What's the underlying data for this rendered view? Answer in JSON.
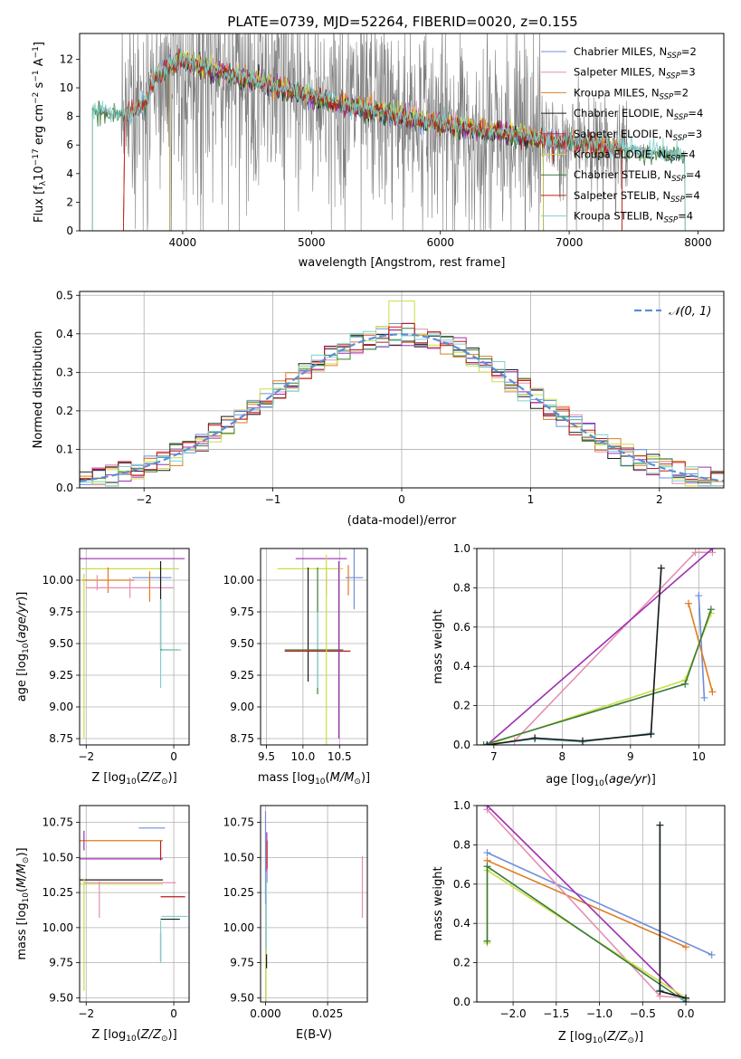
{
  "figure": {
    "title": "PLATE=0739, MJD=52264, FIBERID=0020, z=0.155"
  },
  "colors": {
    "data_gray": "#808080",
    "axis": "#000000",
    "grid": "#b0b0b0",
    "chabrier_miles": "#6f8fdb",
    "salpeter_miles": "#e58fb4",
    "kroupa_miles": "#e07b20",
    "chabrier_elodie": "#1a1a1a",
    "salpeter_elodie": "#9f2fb0",
    "kroupa_elodie": "#ccdd44",
    "chabrier_stelib": "#3a7a3a",
    "salpeter_stelib": "#c01818",
    "kroupa_stelib": "#7fd0cc",
    "gaussian": "#5b8fd6"
  },
  "legend": {
    "spectrum": [
      {
        "key": "chabrier_miles",
        "pre": "Chabrier MILES, N",
        "sub": "SSP",
        "post": "=2"
      },
      {
        "key": "salpeter_miles",
        "pre": "Salpeter MILES, N",
        "sub": "SSP",
        "post": "=3"
      },
      {
        "key": "kroupa_miles",
        "pre": "Kroupa MILES, N",
        "sub": "SSP",
        "post": "=2"
      },
      {
        "key": "chabrier_elodie",
        "pre": "Chabrier ELODIE, N",
        "sub": "SSP",
        "post": "=4"
      },
      {
        "key": "salpeter_elodie",
        "pre": "Salpeter ELODIE, N",
        "sub": "SSP",
        "post": "=3"
      },
      {
        "key": "kroupa_elodie",
        "pre": "Kroupa ELODIE, N",
        "sub": "SSP",
        "post": "=4"
      },
      {
        "key": "chabrier_stelib",
        "pre": "Chabrier STELIB, N",
        "sub": "SSP",
        "post": "=4"
      },
      {
        "key": "salpeter_stelib",
        "pre": "Salpeter STELIB, N",
        "sub": "SSP",
        "post": "=4"
      },
      {
        "key": "kroupa_stelib",
        "pre": "Kroupa STELIB, N",
        "sub": "SSP",
        "post": "=4"
      }
    ],
    "residual": "𝒩(0, 1)"
  },
  "chart_data": [
    {
      "id": "spectrum",
      "type": "line",
      "xlabel": "wavelength [Angstrom, rest frame]",
      "ylabel": "Flux [f_λ 10^-17 erg cm^-2 s^-1 A^-1]",
      "ylabel_parts": {
        "pre": "Flux [f",
        "sub1": "λ",
        "mid": "10",
        "sup1": "−17",
        "mid2": " erg cm",
        "sup2": "−2",
        "mid3": " s",
        "sup3": "−1",
        "mid4": " A",
        "sup4": "−1",
        "post": "]"
      },
      "xlim": [
        3200,
        8200
      ],
      "ylim": [
        0,
        13.8
      ],
      "xticks": [
        4000,
        5000,
        6000,
        7000,
        8000
      ],
      "xtick_labels": [
        "4000",
        "5000",
        "6000",
        "7000",
        "8000"
      ],
      "yticks": [
        0,
        2,
        4,
        6,
        8,
        10,
        12
      ],
      "ytick_labels": [
        "0",
        "2",
        "4",
        "6",
        "8",
        "10",
        "12"
      ],
      "grid": false,
      "legend_position": "right",
      "data_continuum": {
        "x": [
          3300,
          3400,
          3500,
          3600,
          3700,
          3800,
          3900,
          4000,
          4100,
          4200,
          4300,
          4400,
          4500,
          4600,
          4700,
          4800,
          4900,
          5000,
          5200,
          5400,
          5600,
          5800,
          6000,
          6200,
          6400,
          6600,
          6800,
          7000,
          7200,
          7400,
          7600,
          7800,
          7900
        ],
        "y": [
          8.5,
          8.3,
          8.2,
          8.0,
          8.6,
          11.2,
          11.8,
          12.0,
          11.6,
          11.4,
          11.2,
          10.9,
          10.6,
          10.5,
          10.3,
          9.9,
          9.7,
          9.4,
          9.0,
          8.6,
          8.2,
          7.9,
          7.5,
          7.2,
          6.9,
          6.6,
          6.4,
          6.2,
          6.0,
          5.8,
          5.5,
          5.3,
          5.2
        ]
      },
      "model_continuum": {
        "x": [
          3300,
          3500,
          3600,
          3700,
          3800,
          3900,
          4000,
          4200,
          4400,
          4600,
          4800,
          5000,
          5200,
          5400,
          5600,
          5800,
          6000,
          6200,
          6400,
          6600,
          6800,
          7000,
          7200,
          7400,
          7600,
          7800,
          7900
        ],
        "y": [
          8.4,
          8.1,
          8.3,
          8.8,
          11.0,
          11.6,
          11.9,
          11.3,
          10.8,
          10.4,
          9.9,
          9.4,
          8.9,
          8.5,
          8.2,
          7.8,
          7.5,
          7.2,
          6.9,
          6.6,
          6.4,
          6.2,
          6.0,
          5.8,
          5.5,
          5.4,
          5.2
        ]
      }
    },
    {
      "id": "residuals",
      "type": "line",
      "xlabel": "(data-model)/error",
      "ylabel": "Normed distribution",
      "xlim": [
        -2.5,
        2.5
      ],
      "ylim": [
        0,
        0.51
      ],
      "xticks": [
        -2,
        -1,
        0,
        1,
        2
      ],
      "xtick_labels": [
        "−2",
        "−1",
        "0",
        "1",
        "2"
      ],
      "yticks": [
        0,
        0.1,
        0.2,
        0.3,
        0.4,
        0.5
      ],
      "ytick_labels": [
        "0.0",
        "0.1",
        "0.2",
        "0.3",
        "0.4",
        "0.5"
      ],
      "grid": true,
      "legend_position": "top-right",
      "histogram_bin_width": 0.1,
      "series_keys": [
        "chabrier_miles",
        "salpeter_miles",
        "kroupa_miles",
        "chabrier_elodie",
        "salpeter_elodie",
        "kroupa_elodie",
        "chabrier_stelib",
        "salpeter_stelib",
        "kroupa_stelib"
      ],
      "gaussian": {
        "name": "𝒩(0, 1)",
        "mean": 0,
        "sigma": 1
      }
    },
    {
      "id": "age_vs_Z",
      "type": "scatter",
      "xlabel": "Z [log10(Z/Z⊙)]",
      "ylabel": "age  [log10(age/yr)]",
      "xlim": [
        -2.15,
        0.35
      ],
      "ylim": [
        8.7,
        10.25
      ],
      "xticks": [
        -2,
        0
      ],
      "xtick_labels": [
        "−2",
        "0"
      ],
      "yticks": [
        8.75,
        9.0,
        9.25,
        9.5,
        9.75,
        10.0
      ],
      "ytick_labels": [
        "8.75",
        "9.00",
        "9.25",
        "9.50",
        "9.75",
        "10.00"
      ],
      "grid": true,
      "errorbars": [
        {
          "key": "salpeter_elodie",
          "x": -1.0,
          "xerr": 1.25,
          "y": 10.17,
          "yerr": 0
        },
        {
          "key": "kroupa_elodie",
          "x": -1.0,
          "xerr": 1.12,
          "y": 10.09,
          "yerr": 0
        },
        {
          "key": "chabrier_miles",
          "x": -0.5,
          "xerr": 0.45,
          "y": 10.02,
          "yerr": 0
        },
        {
          "key": "kroupa_miles",
          "x": -1.5,
          "xerr": 0.6,
          "y": 10.0,
          "yerr": 0.1
        },
        {
          "key": "salpeter_miles",
          "x": -1.0,
          "xerr": 1.0,
          "y": 9.94,
          "yerr": 0.08
        },
        {
          "key": "kroupa_miles",
          "x": -0.55,
          "xerr": 0,
          "y": 9.95,
          "yerr": 0.12
        },
        {
          "key": "chabrier_elodie",
          "x": -0.3,
          "xerr": 0,
          "y": 9.8,
          "yerr": 0.35
        },
        {
          "key": "kroupa_stelib",
          "x": -0.3,
          "xerr": 0,
          "y": 9.5,
          "yerr": 0.35
        },
        {
          "key": "chabrier_stelib",
          "x": -0.1,
          "xerr": 0.2,
          "y": 9.45,
          "yerr": 0
        },
        {
          "key": "kroupa_stelib",
          "x": -0.05,
          "xerr": 0.22,
          "y": 9.45,
          "yerr": 0
        },
        {
          "key": "kroupa_elodie",
          "x": -2.05,
          "xerr": 0,
          "y": 9.4,
          "yerr": 0.65
        },
        {
          "key": "salpeter_miles",
          "x": -1.75,
          "xerr": 0,
          "y": 9.98,
          "yerr": 0.06
        }
      ]
    },
    {
      "id": "age_vs_mass",
      "type": "scatter",
      "xlabel": "mass [log10(M/M⊙)]",
      "ylabel": "",
      "xlim": [
        9.42,
        10.88
      ],
      "ylim": [
        8.7,
        10.25
      ],
      "xticks": [
        9.5,
        10.0,
        10.5
      ],
      "xtick_labels": [
        "9.5",
        "10.0",
        "10.5"
      ],
      "yticks": [
        8.75,
        9.0,
        9.25,
        9.5,
        9.75,
        10.0
      ],
      "ytick_labels": [
        "8.75",
        "9.00",
        "9.25",
        "9.50",
        "9.75",
        "10.00"
      ],
      "grid": true,
      "errorbars": [
        {
          "key": "salpeter_elodie",
          "x": 10.25,
          "xerr": 0.35,
          "y": 10.17,
          "yerr": 0
        },
        {
          "key": "kroupa_elodie",
          "x": 10.1,
          "xerr": 0.45,
          "y": 10.09,
          "yerr": 0
        },
        {
          "key": "chabrier_miles",
          "x": 10.7,
          "xerr": 0.12,
          "y": 10.02,
          "yerr": 0.25
        },
        {
          "key": "kroupa_miles",
          "x": 10.62,
          "xerr": 0,
          "y": 10.0,
          "yerr": 0.12
        },
        {
          "key": "salpeter_miles",
          "x": 10.32,
          "xerr": 0,
          "y": 9.98,
          "yerr": 0.1
        },
        {
          "key": "chabrier_elodie",
          "x": 10.07,
          "xerr": 0,
          "y": 9.65,
          "yerr": 0.45
        },
        {
          "key": "chabrier_stelib",
          "x": 10.2,
          "xerr": 0,
          "y": 9.6,
          "yerr": 0.5
        },
        {
          "key": "kroupa_stelib",
          "x": 10.2,
          "xerr": 0,
          "y": 9.45,
          "yerr": 0.3
        },
        {
          "key": "chabrier_stelib",
          "x": 10.15,
          "xerr": 0.4,
          "y": 9.45,
          "yerr": 0
        },
        {
          "key": "salpeter_stelib",
          "x": 10.2,
          "xerr": 0.45,
          "y": 9.44,
          "yerr": 0
        },
        {
          "key": "kroupa_elodie",
          "x": 10.32,
          "xerr": 0,
          "y": 9.45,
          "yerr": 0.75
        },
        {
          "key": "salpeter_elodie",
          "x": 10.49,
          "xerr": 0,
          "y": 9.45,
          "yerr": 0.7
        }
      ]
    },
    {
      "id": "weight_vs_age",
      "type": "line",
      "xlabel": "age  [log10(age/yr)]",
      "ylabel": "mass weight",
      "xlim": [
        6.75,
        10.38
      ],
      "ylim": [
        0,
        1.0
      ],
      "xticks": [
        7,
        8,
        9,
        10
      ],
      "xtick_labels": [
        "7",
        "8",
        "9",
        "10"
      ],
      "yticks": [
        0,
        0.2,
        0.4,
        0.6,
        0.8,
        1.0
      ],
      "ytick_labels": [
        "0.0",
        "0.2",
        "0.4",
        "0.6",
        "0.8",
        "1.0"
      ],
      "grid": true,
      "series": [
        {
          "key": "chabrier_miles",
          "x": [
            10.0,
            10.08
          ],
          "y": [
            0.76,
            0.24
          ]
        },
        {
          "key": "salpeter_miles",
          "x": [
            7.3,
            9.95,
            10.2
          ],
          "y": [
            0.02,
            0.98,
            0.98
          ]
        },
        {
          "key": "kroupa_miles",
          "x": [
            9.85,
            10.2
          ],
          "y": [
            0.72,
            0.27
          ]
        },
        {
          "key": "salpeter_elodie",
          "x": [
            6.9,
            10.2
          ],
          "y": [
            0.0,
            1.0
          ]
        },
        {
          "key": "kroupa_elodie",
          "x": [
            6.9,
            9.8,
            10.18
          ],
          "y": [
            0.0,
            0.33,
            0.67
          ]
        },
        {
          "key": "chabrier_stelib",
          "x": [
            6.85,
            9.8,
            10.18
          ],
          "y": [
            0.0,
            0.31,
            0.69
          ]
        },
        {
          "key": "kroupa_stelib",
          "x": [
            6.9,
            7.6,
            8.3,
            9.3,
            9.45
          ],
          "y": [
            0.0,
            0.03,
            0.015,
            0.06,
            0.9
          ]
        },
        {
          "key": "chabrier_elodie",
          "x": [
            6.9,
            7.6,
            8.3,
            9.3,
            9.45
          ],
          "y": [
            0.0,
            0.035,
            0.02,
            0.055,
            0.9
          ]
        }
      ]
    },
    {
      "id": "mass_vs_Z",
      "type": "scatter",
      "xlabel": "Z [log10(Z/Z⊙)]",
      "ylabel": "mass [log10(M/M⊙)]",
      "xlim": [
        -2.15,
        0.35
      ],
      "ylim": [
        9.47,
        10.87
      ],
      "xticks": [
        -2,
        0
      ],
      "xtick_labels": [
        "−2",
        "0"
      ],
      "yticks": [
        9.5,
        9.75,
        10.0,
        10.25,
        10.5,
        10.75
      ],
      "ytick_labels": [
        "9.50",
        "9.75",
        "10.00",
        "10.25",
        "10.50",
        "10.75"
      ],
      "grid": true,
      "errorbars": [
        {
          "key": "chabrier_miles",
          "x": -0.5,
          "xerr": 0.3,
          "y": 10.71,
          "yerr": 0
        },
        {
          "key": "kroupa_miles",
          "x": -1.2,
          "xerr": 0.95,
          "y": 10.62,
          "yerr": 0
        },
        {
          "key": "salpeter_elodie",
          "x": -1.2,
          "xerr": 0.95,
          "y": 10.49,
          "yerr": 0
        },
        {
          "key": "chabrier_elodie",
          "x": -1.2,
          "xerr": 0.95,
          "y": 10.34,
          "yerr": 0
        },
        {
          "key": "kroupa_elodie",
          "x": -1.2,
          "xerr": 0.95,
          "y": 10.31,
          "yerr": 0
        },
        {
          "key": "salpeter_miles",
          "x": -1.0,
          "xerr": 1.05,
          "y": 10.32,
          "yerr": 0
        },
        {
          "key": "salpeter_stelib",
          "x": -0.02,
          "xerr": 0.28,
          "y": 10.22,
          "yerr": 0
        },
        {
          "key": "kroupa_stelib",
          "x": 0.02,
          "xerr": 0.3,
          "y": 10.08,
          "yerr": 0
        },
        {
          "key": "chabrier_elodie",
          "x": -0.08,
          "xerr": 0.22,
          "y": 10.06,
          "yerr": 0
        },
        {
          "key": "salpeter_miles",
          "x": -1.7,
          "xerr": 0,
          "y": 10.2,
          "yerr": 0.13
        },
        {
          "key": "salpeter_elodie",
          "x": -2.05,
          "xerr": 0,
          "y": 10.62,
          "yerr": 0.07
        },
        {
          "key": "kroupa_elodie",
          "x": -2.05,
          "xerr": 0,
          "y": 9.95,
          "yerr": 0.4
        },
        {
          "key": "salpeter_stelib",
          "x": -0.3,
          "xerr": 0,
          "y": 10.55,
          "yerr": 0.07
        },
        {
          "key": "chabrier_elodie",
          "x": -0.3,
          "xerr": 0,
          "y": 9.86,
          "yerr": 0.1
        },
        {
          "key": "kroupa_stelib",
          "x": -0.3,
          "xerr": 0,
          "y": 9.9,
          "yerr": 0.15
        }
      ]
    },
    {
      "id": "mass_vs_EBV",
      "type": "scatter",
      "xlabel": "E(B-V)",
      "ylabel": "",
      "xlim": [
        -0.002,
        0.041
      ],
      "ylim": [
        9.47,
        10.87
      ],
      "xticks": [
        0.0,
        0.025
      ],
      "xtick_labels": [
        "0.000",
        "0.025"
      ],
      "yticks": [
        9.5,
        9.75,
        10.0,
        10.25,
        10.5,
        10.75
      ],
      "ytick_labels": [
        "9.50",
        "9.75",
        "10.00",
        "10.25",
        "10.50",
        "10.75"
      ],
      "grid": true,
      "errorbars": [
        {
          "key": "chabrier_miles",
          "x": 0.0,
          "xerr": 0,
          "y": 10.5,
          "yerr": 0.33
        },
        {
          "key": "salpeter_elodie",
          "x": 0.0005,
          "xerr": 0,
          "y": 10.5,
          "yerr": 0.18
        },
        {
          "key": "salpeter_stelib",
          "x": 0.0006,
          "xerr": 0,
          "y": 10.52,
          "yerr": 0.1
        },
        {
          "key": "kroupa_stelib",
          "x": 0.0003,
          "xerr": 0,
          "y": 10.1,
          "yerr": 0.3
        },
        {
          "key": "kroupa_elodie",
          "x": 0.0002,
          "xerr": 0,
          "y": 9.65,
          "yerr": 0.2
        },
        {
          "key": "chabrier_elodie",
          "x": 0.0004,
          "xerr": 0,
          "y": 9.76,
          "yerr": 0.05
        },
        {
          "key": "salpeter_miles",
          "x": 0.039,
          "xerr": 0,
          "y": 10.29,
          "yerr": 0.22
        }
      ]
    },
    {
      "id": "weight_vs_Z",
      "type": "line",
      "xlabel": "Z [log10(Z/Z⊙)]",
      "ylabel": "mass weight",
      "xlim": [
        -2.42,
        0.45
      ],
      "ylim": [
        0,
        1.0
      ],
      "xticks": [
        -2.0,
        -1.5,
        -1.0,
        -0.5,
        0.0
      ],
      "xtick_labels": [
        "−2.0",
        "−1.5",
        "−1.0",
        "−0.5",
        "0.0"
      ],
      "yticks": [
        0,
        0.2,
        0.4,
        0.6,
        0.8,
        1.0
      ],
      "ytick_labels": [
        "0.0",
        "0.2",
        "0.4",
        "0.6",
        "0.8",
        "1.0"
      ],
      "grid": true,
      "series": [
        {
          "key": "chabrier_miles",
          "x": [
            -2.3,
            0.3
          ],
          "y": [
            0.76,
            0.24
          ]
        },
        {
          "key": "kroupa_miles",
          "x": [
            -2.3,
            0.0
          ],
          "y": [
            0.72,
            0.28
          ]
        },
        {
          "key": "salpeter_miles",
          "x": [
            -2.3,
            -0.3,
            0.0
          ],
          "y": [
            0.98,
            0.03,
            0.02
          ]
        },
        {
          "key": "salpeter_elodie",
          "x": [
            -2.3,
            0.0
          ],
          "y": [
            1.0,
            0.0
          ]
        },
        {
          "key": "kroupa_elodie",
          "x": [
            -2.3,
            -2.3,
            0.0
          ],
          "y": [
            0.3,
            0.67,
            0.02
          ]
        },
        {
          "key": "chabrier_stelib",
          "x": [
            -2.3,
            -2.3,
            0.0
          ],
          "y": [
            0.31,
            0.69,
            0.0
          ]
        },
        {
          "key": "kroupa_stelib",
          "x": [
            -0.3,
            -0.3,
            0.0
          ],
          "y": [
            0.9,
            0.06,
            0.01
          ]
        },
        {
          "key": "chabrier_elodie",
          "x": [
            -0.3,
            -0.3,
            0.0
          ],
          "y": [
            0.9,
            0.055,
            0.02
          ]
        }
      ]
    }
  ]
}
